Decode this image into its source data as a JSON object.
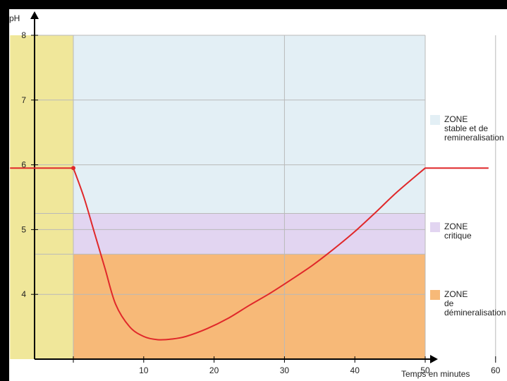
{
  "chart_data": {
    "type": "line",
    "ylabel": "pH",
    "xlabel": "Temps en minutes",
    "ylim": [
      3,
      8
    ],
    "xlim": [
      -9,
      81
    ],
    "x_ticks": [
      10,
      20,
      30,
      40,
      50,
      60
    ],
    "y_ticks": [
      4,
      5,
      6,
      7,
      8
    ],
    "grid": true,
    "colors": {
      "pre_band": "#f0e79a",
      "stable": "#e3eff5",
      "critical": "#e2d5f1",
      "demin": "#f7b978",
      "line": "#e0282a",
      "grid": "#b9b9b9"
    },
    "zones": [
      {
        "key": "stable",
        "label_lines": [
          "ZONE",
          "stable et de",
          "remineralisation"
        ],
        "ymin": 5.25,
        "ymax": 8
      },
      {
        "key": "critical",
        "label_lines": [
          "ZONE",
          "critique"
        ],
        "ymin": 4.62,
        "ymax": 5.25
      },
      {
        "key": "demin",
        "label_lines": [
          "ZONE",
          "de",
          "démineralisation"
        ],
        "ymin": 3,
        "ymax": 4.62
      }
    ],
    "pre_period": {
      "xmin": -9,
      "xmax": 0
    },
    "series": [
      {
        "x": [
          -9,
          0,
          1.5,
          3,
          4.5,
          6,
          8,
          10,
          12,
          14,
          16,
          19,
          22,
          25,
          28,
          31,
          34,
          37,
          40,
          43,
          46,
          50,
          59
        ],
        "y": [
          5.95,
          5.95,
          5.5,
          4.95,
          4.4,
          3.85,
          3.5,
          3.35,
          3.3,
          3.31,
          3.35,
          3.47,
          3.63,
          3.83,
          4.02,
          4.23,
          4.45,
          4.7,
          4.97,
          5.27,
          5.58,
          5.95,
          5.95
        ]
      }
    ],
    "markers": [
      {
        "x": -9,
        "y": 5.95
      },
      {
        "x": 0,
        "y": 5.95
      }
    ]
  }
}
